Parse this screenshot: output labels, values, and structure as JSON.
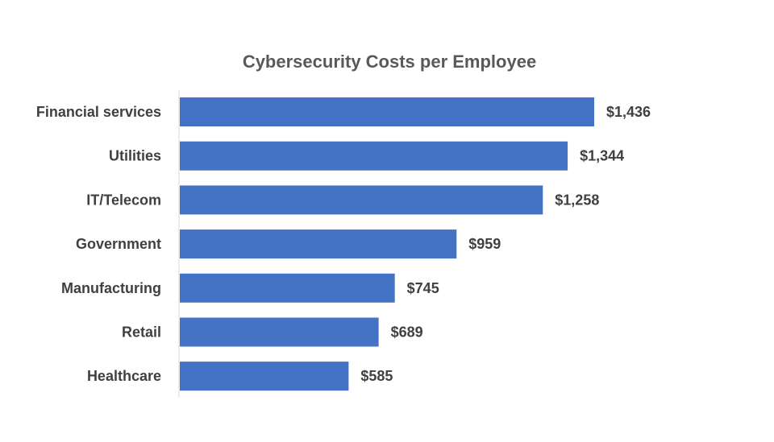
{
  "chart_data": {
    "type": "bar",
    "orientation": "horizontal",
    "title": "Cybersecurity Costs per Employee",
    "xlabel": "",
    "ylabel": "",
    "categories": [
      "Financial services",
      "Utilities",
      "IT/Telecom",
      "Government",
      "Manufacturing",
      "Retail",
      "Healthcare"
    ],
    "values": [
      1436,
      1344,
      1258,
      959,
      745,
      689,
      585
    ],
    "value_labels": [
      "$1,436",
      "$1,344",
      "$1,258",
      "$959",
      "$745",
      "$689",
      "$585"
    ],
    "xlim": [
      0,
      1436
    ],
    "grid": false,
    "legend": "none",
    "bar_color": "#4472C4"
  }
}
